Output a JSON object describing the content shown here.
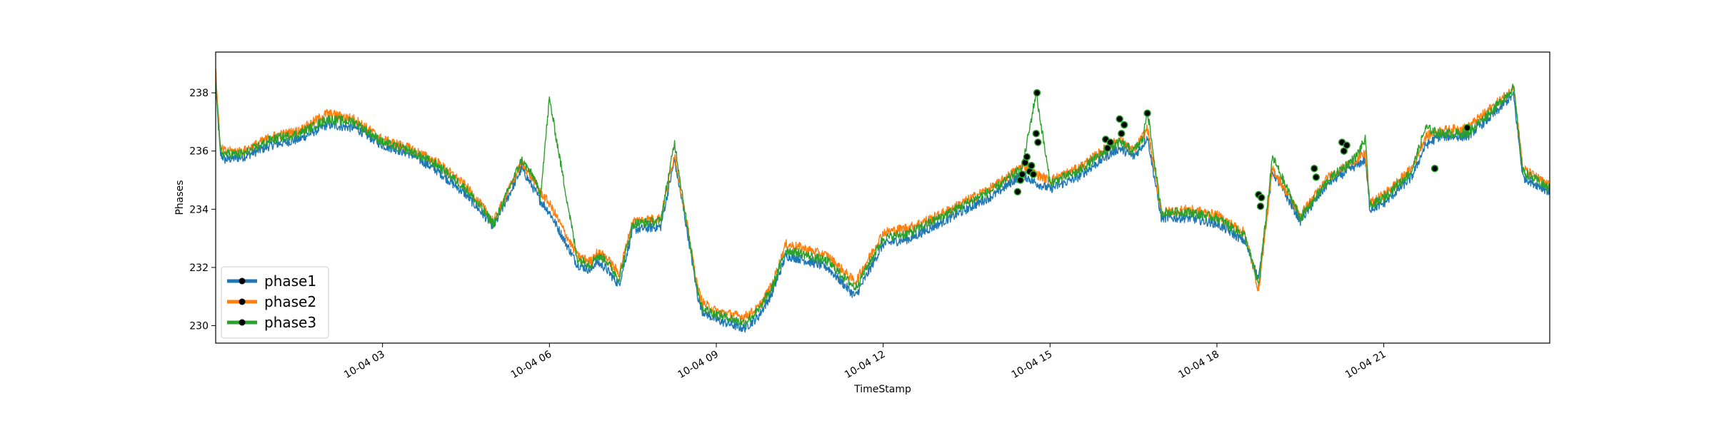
{
  "chart_data": {
    "type": "line",
    "title": "",
    "xlabel": "TimeStamp",
    "ylabel": "Phases",
    "x_range": [
      "2021-10-04T00:00",
      "2021-10-04T23:59"
    ],
    "ylim": [
      229.4,
      239.4
    ],
    "x_ticks": [
      {
        "value": "2021-10-04T03:00",
        "label": "10-04 03"
      },
      {
        "value": "2021-10-04T06:00",
        "label": "10-04 06"
      },
      {
        "value": "2021-10-04T09:00",
        "label": "10-04 09"
      },
      {
        "value": "2021-10-04T12:00",
        "label": "10-04 12"
      },
      {
        "value": "2021-10-04T15:00",
        "label": "10-04 15"
      },
      {
        "value": "2021-10-04T18:00",
        "label": "10-04 18"
      },
      {
        "value": "2021-10-04T21:00",
        "label": "10-04 21"
      }
    ],
    "y_ticks": [
      {
        "value": 230,
        "label": "230"
      },
      {
        "value": 232,
        "label": "232"
      },
      {
        "value": 234,
        "label": "234"
      },
      {
        "value": 236,
        "label": "236"
      },
      {
        "value": 238,
        "label": "238"
      }
    ],
    "grid": false,
    "legend_position": "lower-left",
    "x": [
      "00:00",
      "00:05",
      "00:10",
      "00:30",
      "01:00",
      "01:30",
      "02:00",
      "02:30",
      "03:00",
      "03:30",
      "04:00",
      "04:30",
      "05:00",
      "05:30",
      "05:45",
      "05:50",
      "06:00",
      "06:30",
      "06:45",
      "06:50",
      "07:00",
      "07:15",
      "07:30",
      "08:00",
      "08:15",
      "08:30",
      "08:40",
      "08:45",
      "09:00",
      "09:30",
      "09:45",
      "10:00",
      "10:15",
      "10:30",
      "11:00",
      "11:30",
      "12:00",
      "12:30",
      "13:00",
      "13:30",
      "14:00",
      "14:30",
      "14:45",
      "15:00",
      "15:30",
      "16:00",
      "16:15",
      "16:30",
      "16:40",
      "16:45",
      "17:00",
      "17:30",
      "18:00",
      "18:30",
      "18:45",
      "19:00",
      "19:30",
      "20:00",
      "20:30",
      "20:40",
      "20:45",
      "21:00",
      "21:30",
      "21:45",
      "22:00",
      "22:30",
      "23:00",
      "23:15",
      "23:20",
      "23:30",
      "23:59"
    ],
    "series": [
      {
        "name": "phase1",
        "color": "#1f77b4",
        "values": [
          238.2,
          235.9,
          235.7,
          235.8,
          236.2,
          236.4,
          236.9,
          236.8,
          236.2,
          235.9,
          235.3,
          234.5,
          233.4,
          235.4,
          234.6,
          234.3,
          233.9,
          232.1,
          231.9,
          232.2,
          232.0,
          231.4,
          233.3,
          233.4,
          235.7,
          233.0,
          231.0,
          230.5,
          230.2,
          229.9,
          230.3,
          231.1,
          232.4,
          232.3,
          232.0,
          231.0,
          232.8,
          233.0,
          233.5,
          234.0,
          234.5,
          235.2,
          234.9,
          234.7,
          235.1,
          235.8,
          236.1,
          235.8,
          236.2,
          236.5,
          233.7,
          233.7,
          233.5,
          232.9,
          231.6,
          235.3,
          233.6,
          234.9,
          235.5,
          235.7,
          234.0,
          234.2,
          235.1,
          236.2,
          236.5,
          236.5,
          237.3,
          237.8,
          237.9,
          235.1,
          234.6
        ]
      },
      {
        "name": "phase2",
        "color": "#ff7f0e",
        "values": [
          238.8,
          236.1,
          236.0,
          236.0,
          236.5,
          236.7,
          237.3,
          237.1,
          236.4,
          236.1,
          235.6,
          234.8,
          233.6,
          235.6,
          234.9,
          234.6,
          234.2,
          232.4,
          232.2,
          232.5,
          232.4,
          231.8,
          233.6,
          233.7,
          235.9,
          233.2,
          231.3,
          230.8,
          230.5,
          230.3,
          230.6,
          231.4,
          232.8,
          232.7,
          232.4,
          231.5,
          233.2,
          233.4,
          233.8,
          234.3,
          234.8,
          235.5,
          235.2,
          235.0,
          235.4,
          236.1,
          236.4,
          236.0,
          236.5,
          236.8,
          233.9,
          234.0,
          233.8,
          233.2,
          231.2,
          235.4,
          233.8,
          235.1,
          235.7,
          235.9,
          234.2,
          234.5,
          235.4,
          236.5,
          236.7,
          236.8,
          237.6,
          238.0,
          238.3,
          235.4,
          234.8
        ]
      },
      {
        "name": "phase3",
        "color": "#2ca02c",
        "values": [
          238.5,
          236.0,
          235.9,
          235.9,
          236.4,
          236.6,
          237.1,
          237.0,
          236.3,
          236.0,
          235.5,
          234.7,
          233.5,
          235.7,
          235.0,
          234.4,
          237.8,
          232.3,
          232.1,
          232.4,
          232.3,
          231.6,
          233.5,
          233.6,
          236.3,
          233.1,
          231.2,
          230.6,
          230.4,
          230.1,
          230.5,
          231.3,
          232.6,
          232.5,
          232.2,
          231.3,
          233.0,
          233.2,
          233.7,
          234.2,
          234.7,
          235.4,
          238.0,
          234.9,
          235.3,
          236.0,
          236.3,
          236.0,
          236.4,
          237.4,
          233.9,
          233.9,
          233.7,
          233.1,
          231.4,
          235.8,
          233.7,
          235.0,
          235.8,
          236.4,
          234.1,
          234.4,
          235.3,
          236.8,
          236.6,
          236.6,
          237.5,
          238.0,
          238.2,
          235.3,
          234.7
        ]
      }
    ],
    "markers": {
      "color": "#000000",
      "x": [
        "14:25",
        "14:28",
        "14:30",
        "14:33",
        "14:35",
        "14:38",
        "14:40",
        "14:42",
        "14:45",
        "14:46",
        "14:47",
        "16:00",
        "16:02",
        "16:05",
        "16:15",
        "16:17",
        "16:20",
        "16:45",
        "18:45",
        "18:47",
        "18:48",
        "19:45",
        "19:47",
        "20:15",
        "20:17",
        "20:20",
        "21:55",
        "22:30"
      ],
      "y": [
        234.6,
        235.0,
        235.2,
        235.6,
        235.8,
        235.3,
        235.5,
        235.2,
        236.6,
        238.0,
        236.3,
        236.4,
        236.1,
        236.3,
        237.1,
        236.6,
        236.9,
        237.3,
        234.5,
        234.1,
        234.4,
        235.4,
        235.1,
        236.3,
        236.0,
        236.2,
        235.4,
        236.8
      ]
    }
  }
}
